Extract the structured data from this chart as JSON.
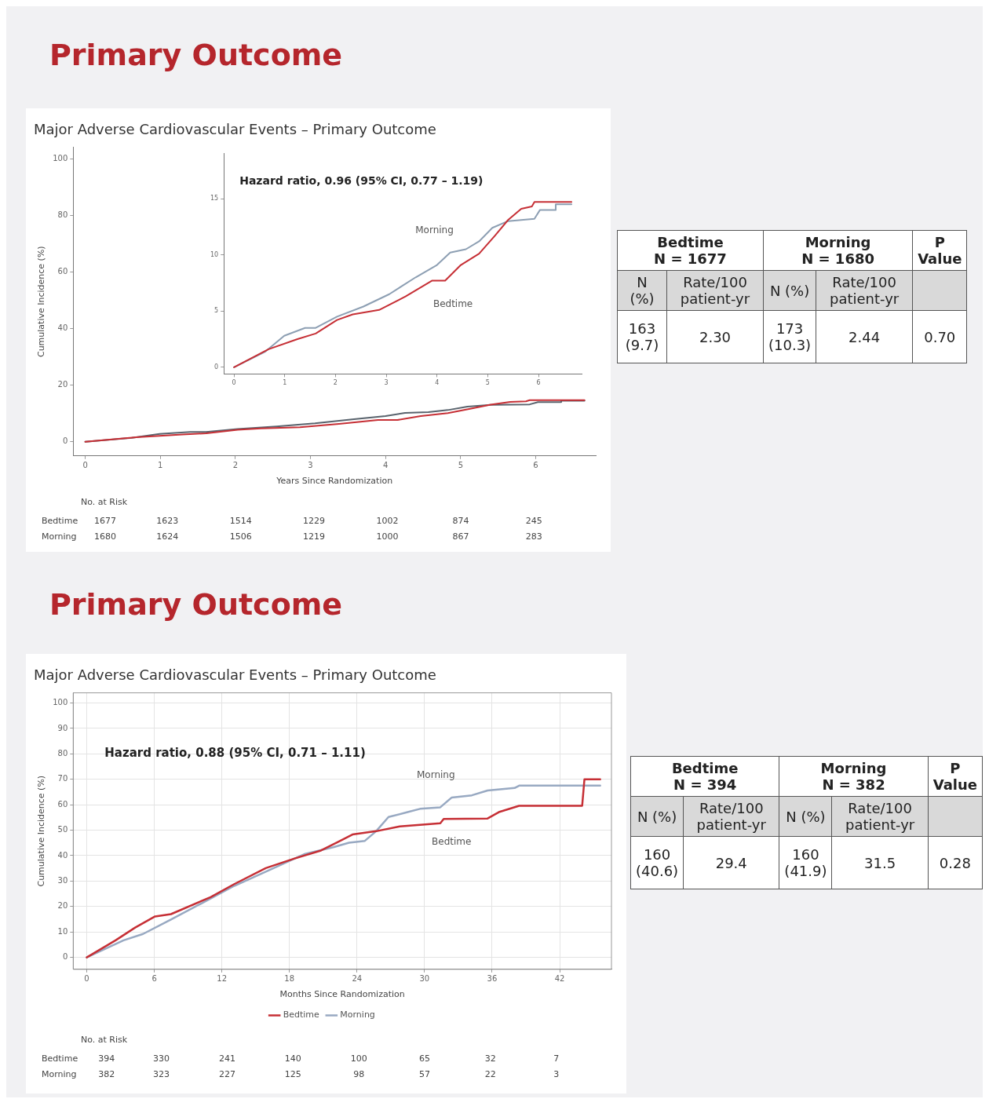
{
  "chart_data": [
    {
      "type": "line",
      "title": "Primary Outcome",
      "subtitle": "Major Adverse Cardiovascular Events – Primary Outcome",
      "xlabel": "Years Since Randomization",
      "ylabel": "Cumulative Incidence (%)",
      "xlim": [
        -0.16,
        6.8
      ],
      "xticks": [
        0,
        1,
        2,
        3,
        4,
        5,
        6
      ],
      "ylim": [
        -5,
        104
      ],
      "yticks": [
        0,
        20,
        40,
        60,
        80,
        100
      ],
      "grid": false,
      "marker": "none",
      "series": [
        {
          "color": "#c62f35",
          "x": [
            0,
            0.68,
            1.25,
            1.61,
            2.03,
            2.34,
            2.86,
            3.38,
            3.9,
            4.16,
            4.47,
            4.83,
            5.14,
            5.4,
            5.66,
            5.87,
            5.92,
            6.65
          ],
          "values": [
            0,
            1.6,
            2.5,
            3,
            4.2,
            4.7,
            5.1,
            6.3,
            7.7,
            7.7,
            9.1,
            10.1,
            11.7,
            13.1,
            14.1,
            14.3,
            14.7,
            14.7
          ]
        },
        {
          "color": "#59636d",
          "x": [
            0,
            0.62,
            0.99,
            1.4,
            1.61,
            2.03,
            2.55,
            3.06,
            3.58,
            4,
            4.26,
            4.57,
            4.83,
            5.09,
            5.4,
            5.92,
            6.03,
            6.34,
            6.34,
            6.65
          ],
          "values": [
            0,
            1.4,
            2.8,
            3.5,
            3.5,
            4.5,
            5.4,
            6.5,
            8,
            9.1,
            10.2,
            10.5,
            11.2,
            12.4,
            13,
            13.2,
            14,
            14,
            14.5,
            14.5
          ]
        }
      ]
    },
    {
      "type": "line",
      "xlim": [
        -0.2,
        6.85
      ],
      "xticks": [
        0,
        1,
        2,
        3,
        4,
        5,
        6
      ],
      "ylim": [
        -0.6,
        19
      ],
      "yticks": [
        0,
        5,
        10,
        15
      ],
      "grid": false,
      "marker": "none",
      "annotations": [
        "Hazard ratio, 0.96 (95% CI, 0.77 – 1.19)"
      ],
      "series": [
        {
          "name": "Bedtime",
          "color": "#c62f35",
          "x": [
            0,
            0.68,
            1.25,
            1.61,
            2.03,
            2.34,
            2.86,
            3.38,
            3.9,
            4.16,
            4.47,
            4.83,
            5.14,
            5.4,
            5.66,
            5.87,
            5.92,
            6.65
          ],
          "values": [
            0,
            1.6,
            2.5,
            3,
            4.2,
            4.7,
            5.1,
            6.3,
            7.7,
            7.7,
            9.1,
            10.1,
            11.7,
            13.1,
            14.1,
            14.3,
            14.7,
            14.7
          ]
        },
        {
          "name": "Morning",
          "color": "#8d9fb3",
          "x": [
            0,
            0.62,
            0.99,
            1.4,
            1.61,
            2.03,
            2.55,
            3.06,
            3.58,
            4,
            4.26,
            4.57,
            4.83,
            5.09,
            5.4,
            5.92,
            6.03,
            6.34,
            6.34,
            6.65
          ],
          "values": [
            0,
            1.4,
            2.8,
            3.5,
            3.5,
            4.5,
            5.4,
            6.5,
            8,
            9.1,
            10.2,
            10.5,
            11.2,
            12.4,
            13,
            13.2,
            14,
            14,
            14.5,
            14.5
          ]
        }
      ]
    },
    {
      "type": "other",
      "annotations": [
        "No. at Risk",
        "Bedtime",
        "1677",
        "1623",
        "1514",
        "1229",
        "1002",
        "874",
        "245",
        "Morning",
        "1680",
        "1624",
        "1506",
        "1219",
        "1000",
        "867",
        "283"
      ]
    },
    {
      "type": "other",
      "annotations": [
        "Bedtime",
        "N = 1677",
        "Morning",
        "N = 1680",
        "P Value",
        "N (%)",
        "Rate/100 patient-yr",
        "N (%)",
        "Rate/100 patient-yr",
        "163 (9.7)",
        "2.30",
        "173 (10.3)",
        "2.44",
        "0.70"
      ]
    },
    {
      "type": "line",
      "title": "Primary Outcome",
      "subtitle": "Major Adverse Cardiovascular Events – Primary Outcome",
      "xlabel": "Months Since Randomization",
      "ylabel": "Cumulative Incidence (%)",
      "xlim": [
        -1.2,
        46.6
      ],
      "xticks": [
        0,
        6,
        12,
        18,
        24,
        30,
        36,
        42
      ],
      "ylim": [
        -4.7,
        104
      ],
      "yticks": [
        0,
        10,
        20,
        30,
        40,
        50,
        60,
        70,
        80,
        90,
        100
      ],
      "grid": true,
      "marker": "none",
      "legend": "bottom",
      "annotations": [
        "Hazard ratio, 0.88 (95% CI, 0.71 – 1.11)"
      ],
      "series": [
        {
          "name": "Bedtime",
          "color": "#c62f35",
          "x": [
            0,
            2.56,
            4.3,
            6.07,
            7.48,
            11,
            13.1,
            15.9,
            18.4,
            20.8,
            22.2,
            23.6,
            25.7,
            27.8,
            31.4,
            31.7,
            35.6,
            36.6,
            38.4,
            44,
            44.2,
            45.6
          ],
          "values": [
            0,
            6.7,
            11.7,
            16.1,
            17,
            23.7,
            28.8,
            35.1,
            38.8,
            42,
            45.1,
            48.3,
            49.6,
            51.5,
            52.7,
            54.4,
            54.6,
            57.1,
            59.6,
            59.6,
            70,
            70
          ]
        },
        {
          "name": "Morning",
          "color": "#98a9c2",
          "x": [
            0,
            3.27,
            5,
            7.48,
            11,
            13.1,
            16.6,
            19.4,
            21.9,
            23.3,
            24.7,
            25.7,
            26.8,
            28.5,
            29.6,
            31.4,
            32.4,
            34.2,
            35.6,
            38,
            38.4,
            45.6
          ],
          "values": [
            0,
            6.7,
            9.2,
            14.9,
            23.1,
            28.1,
            35.1,
            40.7,
            43.3,
            45.1,
            45.8,
            49.6,
            55.2,
            57.1,
            58.4,
            59,
            62.8,
            63.7,
            65.6,
            66.6,
            67.5,
            67.5
          ]
        }
      ]
    },
    {
      "type": "other",
      "annotations": [
        "No. at Risk",
        "Bedtime",
        "394",
        "330",
        "241",
        "140",
        "100",
        "65",
        "32",
        "7",
        "Morning",
        "382",
        "323",
        "227",
        "125",
        "98",
        "57",
        "22",
        "3"
      ]
    },
    {
      "type": "other",
      "annotations": [
        "Bedtime",
        "N = 394",
        "Morning",
        "N = 382",
        "P Value",
        "N (%)",
        "Rate/100 patient-yr",
        "N (%)",
        "Rate/100 patient-yr",
        "160 (40.6)",
        "29.4",
        "160 (41.9)",
        "31.5",
        "0.28"
      ]
    }
  ]
}
